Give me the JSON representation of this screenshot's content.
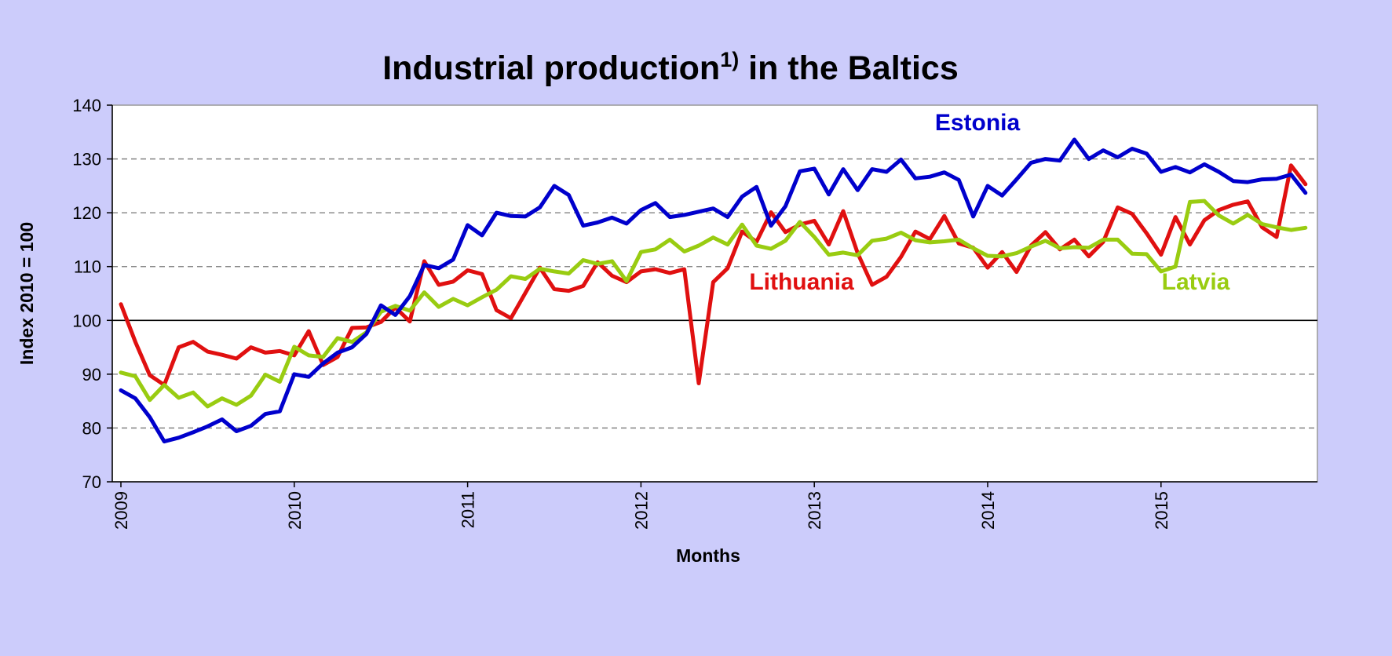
{
  "chart_data": {
    "type": "line",
    "title_main": "Industrial production",
    "title_sup": "1)",
    "title_rest": " in the Baltics",
    "xlabel": "Months",
    "ylabel": "Index 2010 = 100",
    "ylim": [
      70,
      140
    ],
    "yticks": [
      70,
      80,
      90,
      100,
      110,
      120,
      130,
      140
    ],
    "xtick_labels": [
      "2009",
      "2010",
      "2011",
      "2012",
      "2013",
      "2014",
      "2015"
    ],
    "x_start": "2009-01",
    "months": 83,
    "grid": "horizontal dashed",
    "reference_line": 100,
    "series": [
      {
        "name": "Estonia",
        "color": "#0000cc",
        "values": [
          87,
          85.5,
          82,
          77.5,
          78.2,
          79.2,
          80.3,
          81.6,
          79.4,
          80.4,
          82.6,
          83.1,
          90,
          89.5,
          92,
          94,
          95,
          97.5,
          102.8,
          101,
          104.5,
          110.3,
          109.7,
          111.3,
          117.7,
          115.8,
          120,
          119.4,
          119.3,
          121,
          125,
          123.3,
          117.6,
          118.2,
          119.1,
          118,
          120.5,
          121.8,
          119.2,
          119.6,
          120.2,
          120.8,
          119.2,
          123,
          124.8,
          117.6,
          121.2,
          127.7,
          128.2,
          123.4,
          128.1,
          124.2,
          128.1,
          127.6,
          129.9,
          126.4,
          126.7,
          127.5,
          126.1,
          119.3,
          125,
          123.2,
          126.2,
          129.3,
          130,
          129.7,
          133.6,
          130,
          131.6,
          130.3,
          131.9,
          131,
          127.6,
          128.5,
          127.5,
          129,
          127.6,
          125.9,
          125.7,
          126.2,
          126.3,
          127.1,
          123.7
        ]
      },
      {
        "name": "Lithuania",
        "color": "#e01010",
        "values": [
          103,
          96,
          89.8,
          88,
          95,
          96,
          94.2,
          93.6,
          92.9,
          95,
          94,
          94.3,
          93.5,
          98,
          91.7,
          93.2,
          98.6,
          98.7,
          99.7,
          102.4,
          99.8,
          111,
          106.6,
          107.2,
          109.3,
          108.6,
          101.9,
          100.4,
          105.1,
          109.8,
          105.8,
          105.5,
          106.4,
          110.8,
          108.3,
          107.1,
          109.1,
          109.5,
          108.8,
          109.5,
          88.3,
          107.1,
          109.7,
          116.5,
          114.6,
          120.1,
          116.4,
          117.8,
          118.5,
          114.1,
          120.3,
          112.5,
          106.6,
          108.1,
          111.8,
          116.5,
          115.1,
          119.4,
          114.3,
          113.5,
          109.8,
          112.7,
          109,
          113.9,
          116.4,
          113.2,
          115,
          111.9,
          114.6,
          121,
          119.8,
          116.2,
          112.2,
          119.2,
          114.1,
          118.6,
          120.5,
          121.5,
          122.1,
          117.3,
          115.5,
          128.8,
          125.3
        ]
      },
      {
        "name": "Latvia",
        "color": "#99cc11",
        "values": [
          90.3,
          89.6,
          85.2,
          88,
          85.6,
          86.6,
          84,
          85.5,
          84.3,
          86,
          89.9,
          88.6,
          95.1,
          93.5,
          93.2,
          96.7,
          96,
          97.8,
          101.6,
          102.7,
          101.8,
          105.2,
          102.5,
          104,
          102.8,
          104.3,
          105.7,
          108.2,
          107.7,
          109.6,
          109.1,
          108.7,
          111.2,
          110.5,
          111,
          107.3,
          112.7,
          113.2,
          115,
          112.8,
          113.9,
          115.4,
          114.1,
          117.8,
          113.9,
          113.3,
          114.8,
          118.3,
          115.5,
          112.2,
          112.6,
          112.1,
          114.8,
          115.2,
          116.3,
          114.9,
          114.5,
          114.7,
          115,
          113.4,
          112,
          111.9,
          112.5,
          113.7,
          114.8,
          113.4,
          113.6,
          113.5,
          115,
          115,
          112.4,
          112.3,
          109.1,
          110,
          122,
          122.2,
          119.5,
          118,
          119.6,
          117.9,
          117.3,
          116.8,
          117.2
        ]
      }
    ]
  }
}
